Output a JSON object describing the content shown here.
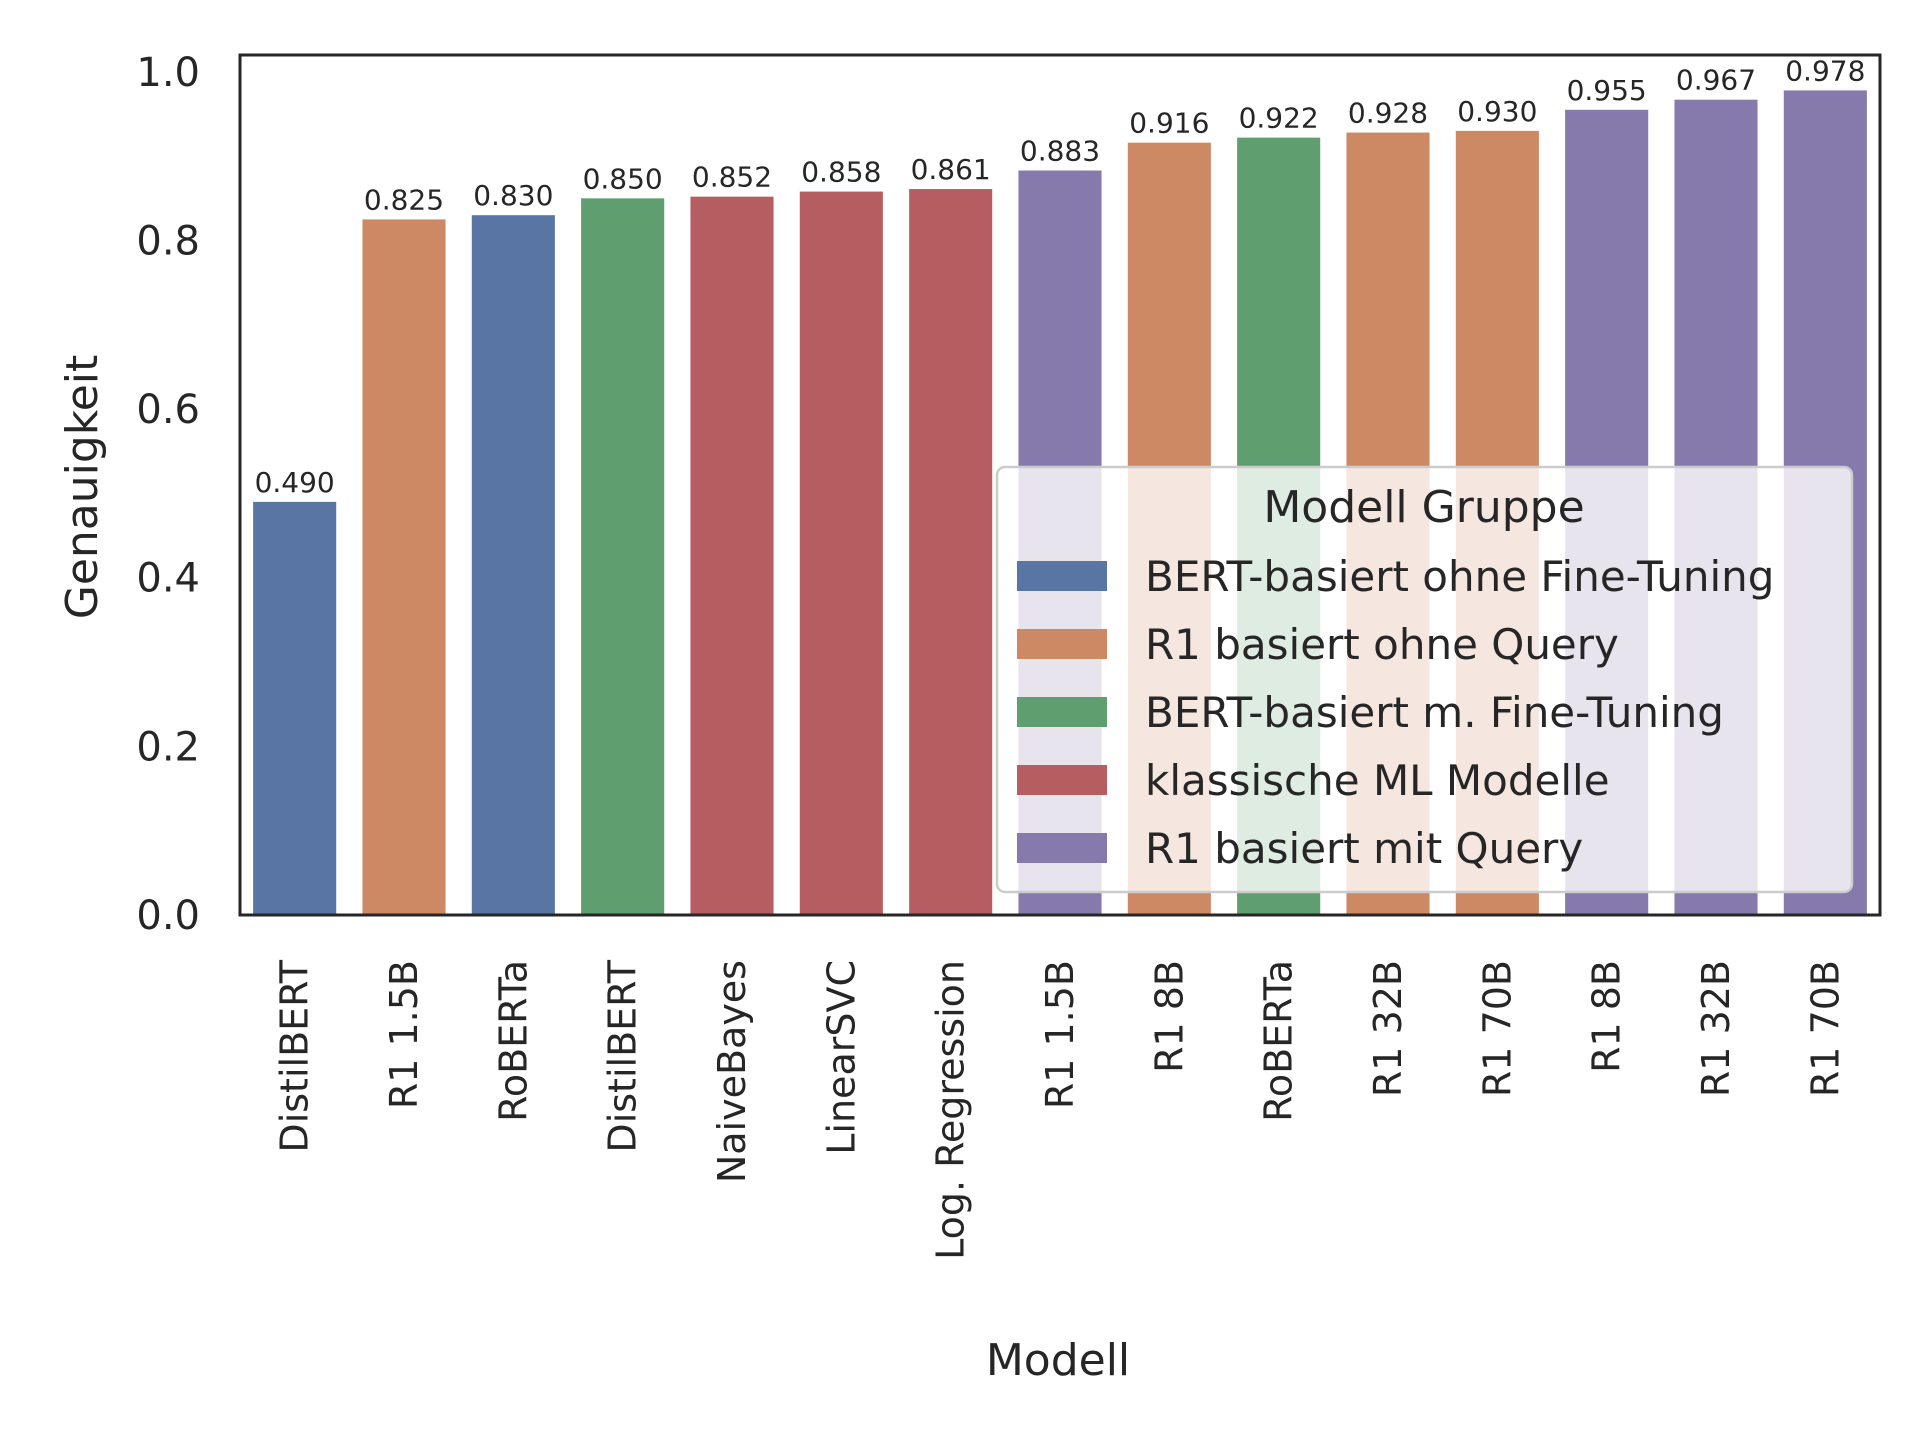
{
  "chart_data": {
    "type": "bar",
    "xlabel": "Modell",
    "ylabel": "Genauigkeit",
    "ylim": [
      0,
      1.02
    ],
    "yticks": [
      "0.0",
      "0.2",
      "0.4",
      "0.6",
      "0.8",
      "1.0"
    ],
    "grid": false,
    "categories": [
      "DistilBERT",
      "R1 1.5B",
      "RoBERTa",
      "DistilBERT",
      "NaiveBayes",
      "LinearSVC",
      "Log. Regression",
      "R1 1.5B",
      "R1 8B",
      "RoBERTa",
      "R1 32B",
      "R1 70B",
      "R1 8B",
      "R1 32B",
      "R1 70B"
    ],
    "values": [
      0.49,
      0.825,
      0.83,
      0.85,
      0.852,
      0.858,
      0.861,
      0.883,
      0.916,
      0.922,
      0.928,
      0.93,
      0.955,
      0.967,
      0.978
    ],
    "value_labels": [
      "0.490",
      "0.825",
      "0.830",
      "0.850",
      "0.852",
      "0.858",
      "0.861",
      "0.883",
      "0.916",
      "0.922",
      "0.928",
      "0.930",
      "0.955",
      "0.967",
      "0.978"
    ],
    "bar_groups": [
      0,
      1,
      0,
      2,
      3,
      3,
      3,
      4,
      1,
      2,
      1,
      1,
      4,
      4,
      4
    ],
    "legend": {
      "title": "Modell Gruppe",
      "position": "lower right",
      "entries": [
        {
          "label": "BERT-basiert ohne Fine-Tuning",
          "color": "#5975a4"
        },
        {
          "label": "R1 basiert ohne Query",
          "color": "#cc8963"
        },
        {
          "label": "BERT-basiert m. Fine-Tuning",
          "color": "#5f9e6e"
        },
        {
          "label": "klassische ML Modelle",
          "color": "#b55d60"
        },
        {
          "label": "R1 basiert mit Query",
          "color": "#857aab"
        }
      ]
    }
  }
}
